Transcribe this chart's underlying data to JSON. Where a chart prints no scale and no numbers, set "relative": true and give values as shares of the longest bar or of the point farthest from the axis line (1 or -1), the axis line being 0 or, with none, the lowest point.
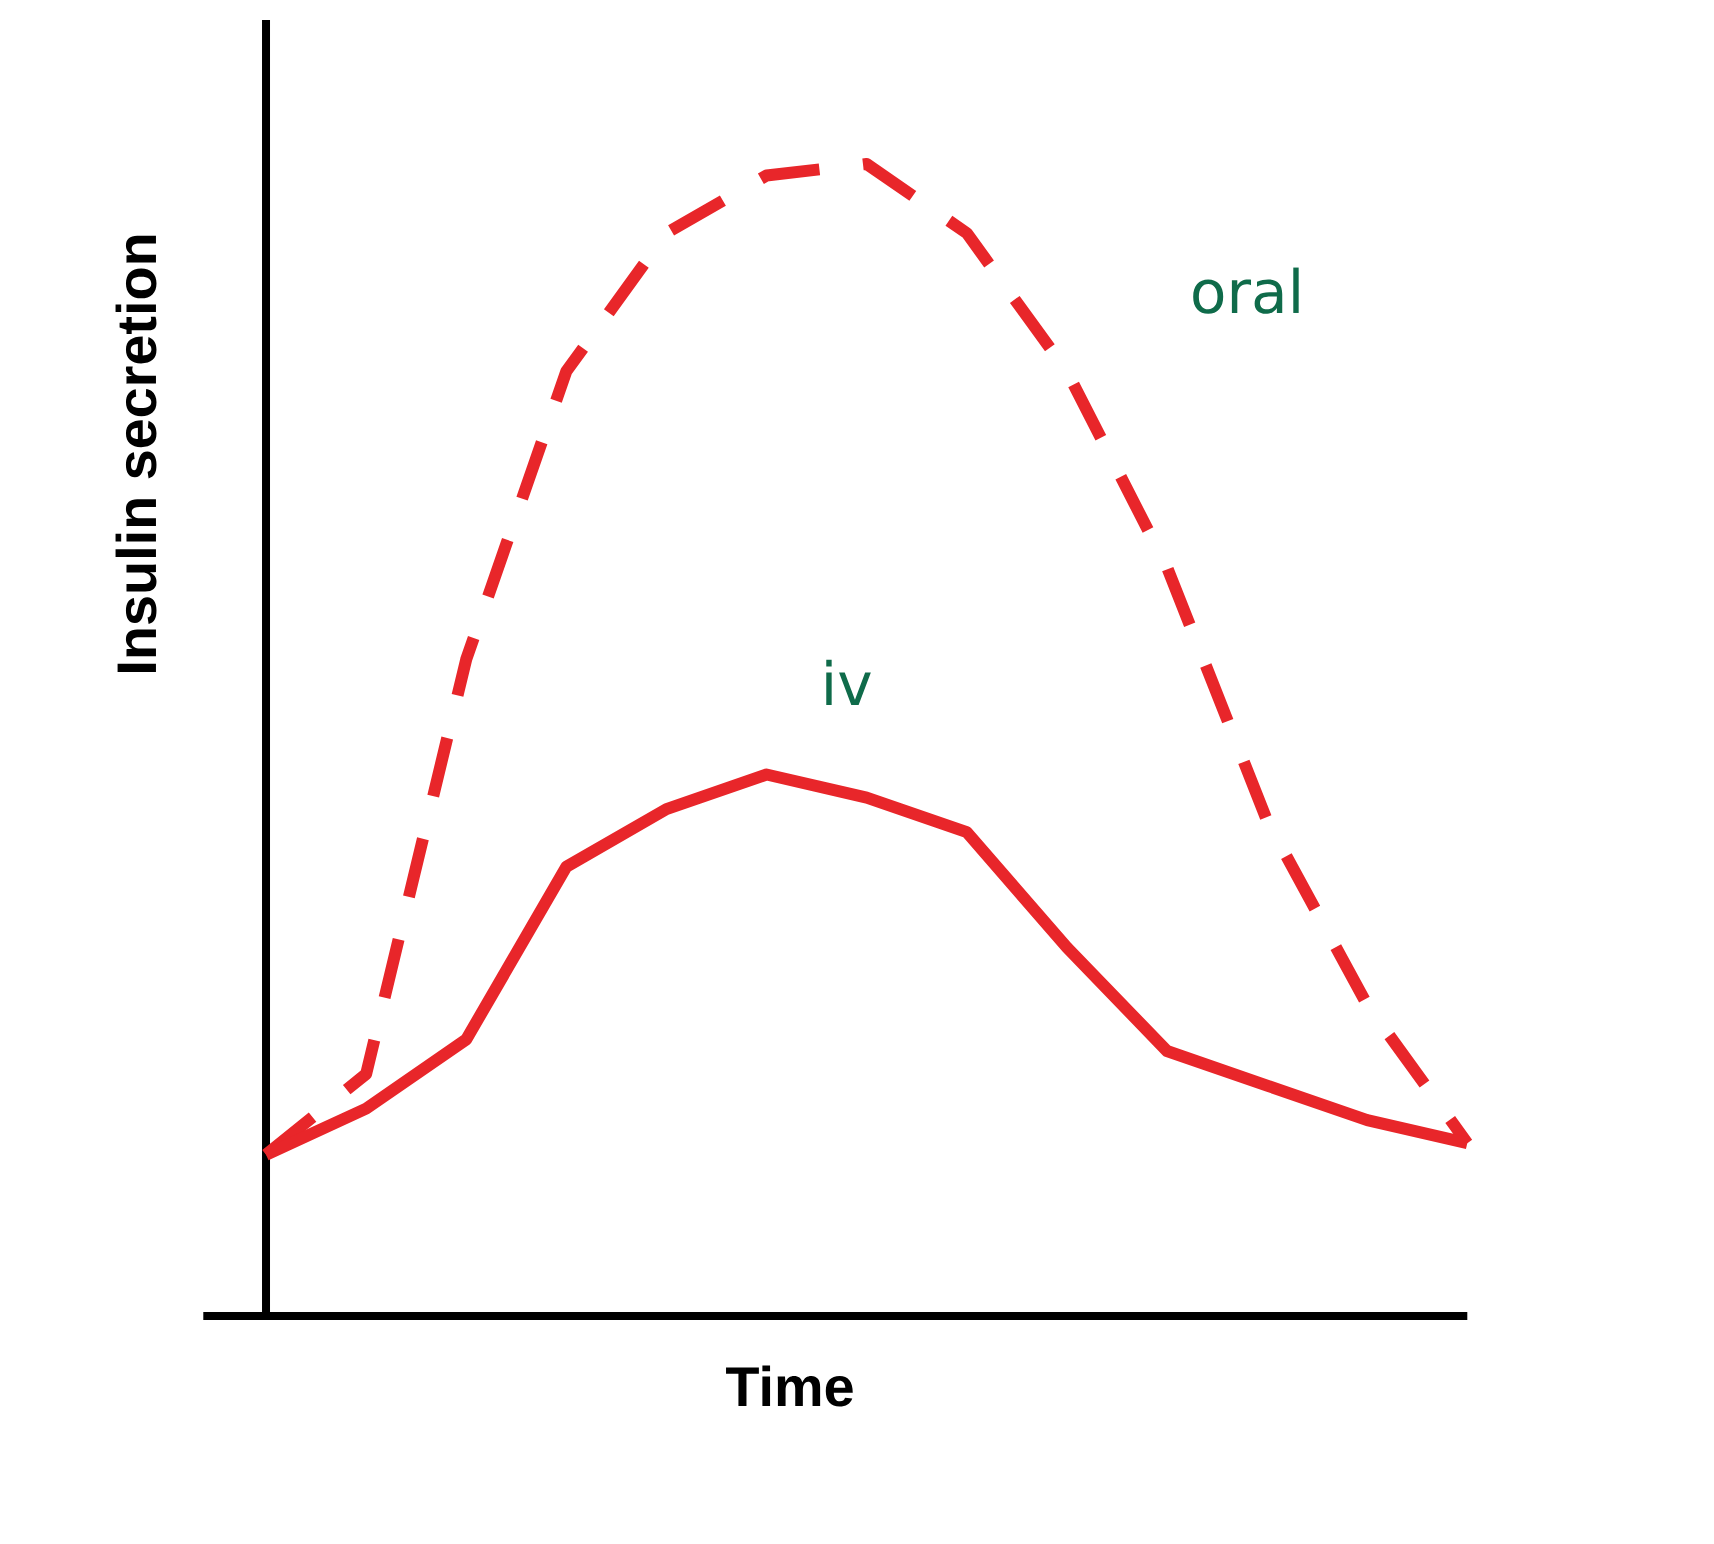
{
  "chart_data": {
    "type": "line",
    "relative": true,
    "xlabel": "Time",
    "ylabel": "Insulin secretion",
    "categories": [
      null,
      null,
      null,
      null,
      null,
      null,
      null,
      null,
      null,
      null,
      null,
      null,
      null
    ],
    "marker": "none",
    "series": [
      {
        "name": "oral",
        "color": "#e8262a",
        "line_style": "dashed",
        "values": [
          0.14,
          0.21,
          0.57,
          0.82,
          0.94,
          0.99,
          1,
          0.94,
          0.82,
          0.65,
          0.43,
          0.27,
          0.15
        ]
      },
      {
        "name": "iv",
        "color": "#e8262a",
        "line_style": "solid",
        "values": [
          0.14,
          0.18,
          0.24,
          0.39,
          0.44,
          0.47,
          0.45,
          0.42,
          0.32,
          0.23,
          0.2,
          0.17,
          0.15
        ]
      }
    ]
  }
}
